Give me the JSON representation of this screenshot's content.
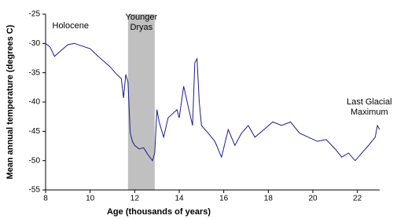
{
  "chart_data": {
    "type": "line",
    "x_label": "Age (thousands of years)",
    "y_label": "Mean annual temperature (degrees C)",
    "x": [
      8.0,
      8.2,
      8.4,
      8.7,
      9.0,
      9.3,
      9.6,
      10.0,
      10.3,
      10.6,
      10.9,
      11.2,
      11.4,
      11.5,
      11.6,
      11.7,
      11.8,
      11.9,
      12.0,
      12.2,
      12.4,
      12.6,
      12.8,
      12.9,
      13.0,
      13.1,
      13.3,
      13.5,
      13.7,
      13.9,
      14.0,
      14.2,
      14.4,
      14.6,
      14.7,
      14.8,
      14.9,
      15.0,
      15.3,
      15.6,
      15.9,
      16.2,
      16.5,
      16.8,
      17.1,
      17.4,
      17.8,
      18.2,
      18.6,
      19.0,
      19.4,
      19.8,
      20.2,
      20.6,
      21.0,
      21.3,
      21.6,
      21.9,
      22.2,
      22.5,
      22.8,
      22.9,
      23.0
    ],
    "values": [
      -30,
      -30.6,
      -32.2,
      -31.2,
      -30.2,
      -30,
      -30.4,
      -30.9,
      -32,
      -33,
      -34,
      -35.3,
      -36,
      -39.3,
      -35.3,
      -36.6,
      -45.3,
      -46.7,
      -47.4,
      -48,
      -47.8,
      -49,
      -50,
      -48.7,
      -41.3,
      -43.4,
      -46,
      -42.7,
      -42,
      -41.3,
      -42.7,
      -37.3,
      -40.7,
      -44,
      -33.3,
      -32.6,
      -40,
      -44,
      -45.3,
      -46.7,
      -49.4,
      -44.7,
      -47.4,
      -45.3,
      -44,
      -46,
      -44.7,
      -43.4,
      -44,
      -43.4,
      -45.3,
      -46,
      -46.7,
      -46.4,
      -48,
      -49.4,
      -48.7,
      -50,
      -48.7,
      -47.4,
      -46,
      -44,
      -44.7
    ],
    "color": "#1c1c8a",
    "shaded_region": {
      "label": "Younger Dryas",
      "x": [
        11.7,
        12.9
      ],
      "color": "#c0c0c0"
    },
    "annotations": [
      {
        "text": "Holocene",
        "x": 8.3,
        "y": -27
      },
      {
        "text": "Last Glacial Maximum",
        "x": 21.3,
        "y": -40
      }
    ],
    "xlim": [
      8,
      23
    ],
    "xticks": [
      8,
      10,
      12,
      14,
      16,
      18,
      20,
      22
    ],
    "ylim": [
      -55,
      -25
    ],
    "yticks": [
      -25,
      -30,
      -35,
      -40,
      -45,
      -50,
      -55
    ],
    "grid": false
  }
}
